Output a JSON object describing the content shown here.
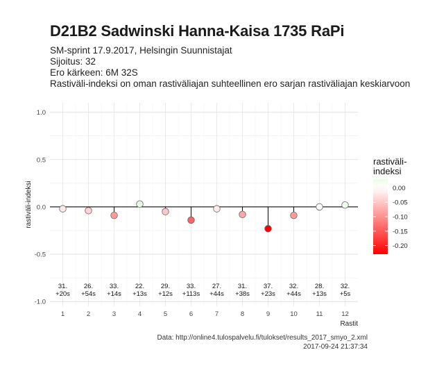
{
  "header": {
    "title": "D21B2 Sadwinski Hanna-Kaisa 1735 RaPi",
    "subtitle_lines": [
      "SM-sprint 17.9.2017, Helsingin Suunnistajat",
      "Sijoitus: 32",
      "Ero kärkeen: 6M 32S",
      "Rastiväli-indeksi on oman rastiväliajan suhteellinen ero sarjan rastiväliajan keskiarvoon"
    ]
  },
  "caption": {
    "source": "Data: http://online4.tulospalvelu.fi/tulokset/results_2017_smyo_2.xml",
    "timestamp": "2017-09-24 21:37:34"
  },
  "chart_data": {
    "type": "scatter",
    "xlabel": "Rastit",
    "ylabel": "rastiväli-indeksi",
    "ylim": [
      -1.0,
      1.0
    ],
    "y_ticks": [
      -1.0,
      -0.5,
      0.0,
      0.5,
      1.0
    ],
    "y_tick_labels": [
      "-1.0",
      "-0.5",
      "0.0",
      "0.5",
      "1.0"
    ],
    "x": [
      1,
      2,
      3,
      4,
      5,
      6,
      7,
      8,
      9,
      10,
      11,
      12
    ],
    "values": [
      -0.02,
      -0.04,
      -0.09,
      0.03,
      -0.05,
      -0.14,
      -0.02,
      -0.08,
      -0.23,
      -0.09,
      0.0,
      0.02
    ],
    "rank_labels": [
      "31.",
      "26.",
      "33.",
      "22.",
      "29.",
      "33.",
      "27.",
      "31.",
      "37.",
      "32.",
      "28.",
      "32."
    ],
    "diff_labels": [
      "+20s",
      "+54s",
      "+14s",
      "+13s",
      "+12s",
      "+113s",
      "+44s",
      "+38s",
      "+23s",
      "+44s",
      "+13s",
      "+5s"
    ],
    "legend": {
      "title": "rastiväli-\nindeksi",
      "ticks": [
        0.0,
        -0.05,
        -0.1,
        -0.15,
        -0.2
      ],
      "tick_labels": [
        "0.00",
        "-0.05",
        "-0.10",
        "-0.15",
        "-0.20"
      ],
      "range": [
        -0.23,
        0.03
      ],
      "placement": "right"
    },
    "colors": {
      "high": "#eafde6",
      "mid": "#ffffff",
      "low": "#ff0000"
    },
    "grid": true
  }
}
